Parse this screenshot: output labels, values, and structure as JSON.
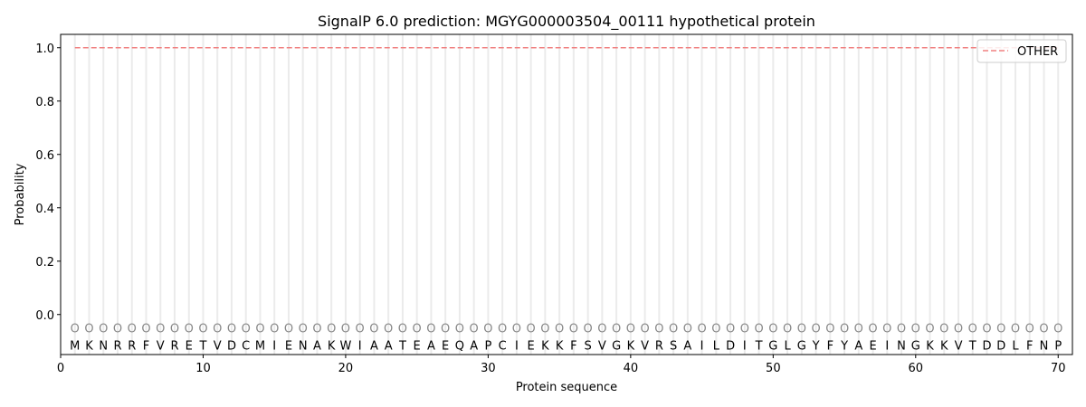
{
  "chart_data": {
    "type": "line",
    "title": "SignalP 6.0 prediction: MGYG000003504_00111 hypothetical protein",
    "xlabel": "Protein sequence",
    "ylabel": "Probability",
    "xlim": [
      0,
      71
    ],
    "ylim": [
      -0.15,
      1.05
    ],
    "xticks": [
      0,
      10,
      20,
      30,
      40,
      50,
      60,
      70
    ],
    "yticks": [
      0.0,
      0.2,
      0.4,
      0.6,
      0.8,
      1.0
    ],
    "ytick_labels": [
      "0.0",
      "0.2",
      "0.4",
      "0.6",
      "0.8",
      "1.0"
    ],
    "grid": "vertical lines at each residue",
    "legend_position": "top-right",
    "sequence": [
      "M",
      "K",
      "N",
      "R",
      "R",
      "F",
      "V",
      "R",
      "E",
      "T",
      "V",
      "D",
      "C",
      "M",
      "I",
      "E",
      "N",
      "A",
      "K",
      "W",
      "I",
      "A",
      "A",
      "T",
      "E",
      "A",
      "E",
      "Q",
      "A",
      "P",
      "C",
      "I",
      "E",
      "K",
      "K",
      "F",
      "S",
      "V",
      "G",
      "K",
      "V",
      "R",
      "S",
      "A",
      "I",
      "L",
      "D",
      "I",
      "T",
      "G",
      "L",
      "G",
      "Y",
      "F",
      "Y",
      "A",
      "E",
      "I",
      "N",
      "G",
      "K",
      "K",
      "V",
      "T",
      "D",
      "D",
      "L",
      "F",
      "N",
      "P"
    ],
    "region_marker": "O",
    "series": [
      {
        "name": "OTHER",
        "color": "#f08080",
        "style": "dashed",
        "x_start": 1,
        "x_end": 70,
        "value": 1.0
      }
    ]
  }
}
